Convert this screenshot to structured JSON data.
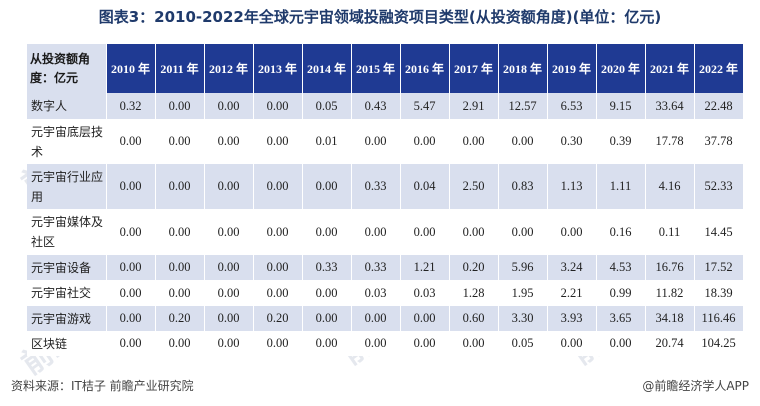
{
  "title": "图表3：2010-2022年全球元宇宙领域投融资项目类型(从投资额角度)(单位：亿元)",
  "corner_label": "从投资额角度：亿元",
  "years": [
    "2010 年",
    "2011 年",
    "2012 年",
    "2013 年",
    "2014 年",
    "2015 年",
    "2016 年",
    "2017 年",
    "2018 年",
    "2019 年",
    "2020 年",
    "2021 年",
    "2022 年"
  ],
  "rows": [
    {
      "label": "数字人",
      "values": [
        "0.32",
        "0.00",
        "0.00",
        "0.00",
        "0.05",
        "0.43",
        "5.47",
        "2.91",
        "12.57",
        "6.53",
        "9.15",
        "33.64",
        "22.48"
      ]
    },
    {
      "label": "元宇宙底层技术",
      "values": [
        "0.00",
        "0.00",
        "0.00",
        "0.00",
        "0.01",
        "0.00",
        "0.00",
        "0.00",
        "0.00",
        "0.30",
        "0.39",
        "17.78",
        "37.78"
      ]
    },
    {
      "label": "元宇宙行业应用",
      "values": [
        "0.00",
        "0.00",
        "0.00",
        "0.00",
        "0.00",
        "0.33",
        "0.04",
        "2.50",
        "0.83",
        "1.13",
        "1.11",
        "4.16",
        "52.33"
      ]
    },
    {
      "label": "元宇宙媒体及社区",
      "values": [
        "0.00",
        "0.00",
        "0.00",
        "0.00",
        "0.00",
        "0.00",
        "0.00",
        "0.00",
        "0.00",
        "0.00",
        "0.16",
        "0.11",
        "14.45"
      ]
    },
    {
      "label": "元宇宙设备",
      "values": [
        "0.00",
        "0.00",
        "0.00",
        "0.00",
        "0.33",
        "0.33",
        "1.21",
        "0.20",
        "5.96",
        "3.24",
        "4.53",
        "16.76",
        "17.52"
      ]
    },
    {
      "label": "元宇宙社交",
      "values": [
        "0.00",
        "0.00",
        "0.00",
        "0.00",
        "0.00",
        "0.03",
        "0.03",
        "1.28",
        "1.95",
        "2.21",
        "0.99",
        "11.82",
        "18.39"
      ]
    },
    {
      "label": "元宇宙游戏",
      "values": [
        "0.00",
        "0.20",
        "0.00",
        "0.20",
        "0.00",
        "0.00",
        "0.00",
        "0.60",
        "3.30",
        "3.93",
        "3.65",
        "34.18",
        "116.46"
      ]
    },
    {
      "label": "区块链",
      "values": [
        "0.00",
        "0.00",
        "0.00",
        "0.00",
        "0.00",
        "0.00",
        "0.00",
        "0.00",
        "0.05",
        "0.00",
        "0.00",
        "20.74",
        "104.25"
      ]
    }
  ],
  "source": "资料来源：IT桔子 前瞻产业研究院",
  "brand": "@前瞻经济学人APP",
  "watermark": "前瞻研究院"
}
